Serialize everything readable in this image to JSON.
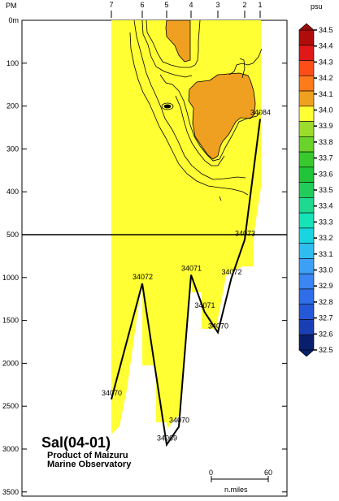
{
  "chart_data": {
    "type": "heatmap",
    "variable": "Sal(04-01)",
    "credit": [
      "Product of Maizuru",
      "Marine Observatory"
    ],
    "x_axis": {
      "label": "PM",
      "station_ticks": [
        "7",
        "6",
        "5",
        "4",
        "3",
        "2",
        "1"
      ]
    },
    "y_axis": {
      "unit": "m",
      "upper_panel": {
        "range": [
          0,
          500
        ],
        "ticks": [
          "0m",
          "100",
          "200",
          "300",
          "400",
          "500"
        ]
      },
      "lower_panel": {
        "range": [
          500,
          3800
        ],
        "ticks": [
          "1000",
          "1500",
          "2000",
          "2500",
          "3000",
          "3500"
        ]
      }
    },
    "colorbar": {
      "unit": "psu",
      "levels": [
        32.5,
        32.6,
        32.7,
        32.8,
        32.9,
        33.0,
        33.1,
        33.2,
        33.3,
        33.4,
        33.5,
        33.6,
        33.7,
        33.8,
        33.9,
        34.0,
        34.1,
        34.2,
        34.3,
        34.4,
        34.5
      ],
      "labels": [
        "34.5",
        "34.4",
        "34.3",
        "34.2",
        "34.1",
        "34.0",
        "33.9",
        "33.8",
        "33.7",
        "33.6",
        "33.5",
        "33.4",
        "33.3",
        "33.2",
        "33.1",
        "33.0",
        "32.9",
        "32.8",
        "32.7",
        "32.6",
        "32.5"
      ],
      "colors": [
        "#0a1f6b",
        "#1a3fb5",
        "#2458d6",
        "#2f6ee8",
        "#3a86f2",
        "#3da0f5",
        "#2fbdf0",
        "#19d5e0",
        "#16e3b8",
        "#1ed98f",
        "#22cc5a",
        "#22c43a",
        "#39c92e",
        "#6ad22a",
        "#9cdc2c",
        "#ffff33",
        "#f0a020",
        "#ff7a1a",
        "#ff4d1a",
        "#e01818",
        "#b00c0c"
      ]
    },
    "stations": [
      {
        "id": "34084",
        "station": "1",
        "bottom_depth": 230
      },
      {
        "id": "34073",
        "station": "2",
        "bottom_depth": 560
      },
      {
        "id": "34072",
        "station": "2.5",
        "bottom_depth": 1010
      },
      {
        "id": "34070",
        "station": "3",
        "bottom_depth": 1640
      },
      {
        "id": "34071",
        "station": "3.5",
        "bottom_depth": 1400
      },
      {
        "id": "34071",
        "station": "4",
        "bottom_depth": 970
      },
      {
        "id": "34070",
        "station": "4.5",
        "bottom_depth": 2740
      },
      {
        "id": "34069",
        "station": "5",
        "bottom_depth": 2950
      },
      {
        "id": "34072",
        "station": "6",
        "bottom_depth": 1070
      },
      {
        "id": "34070",
        "station": "7",
        "bottom_depth": 2420
      }
    ],
    "scale_bar": {
      "start": "0",
      "end": "60",
      "unit": "n.miles"
    }
  }
}
